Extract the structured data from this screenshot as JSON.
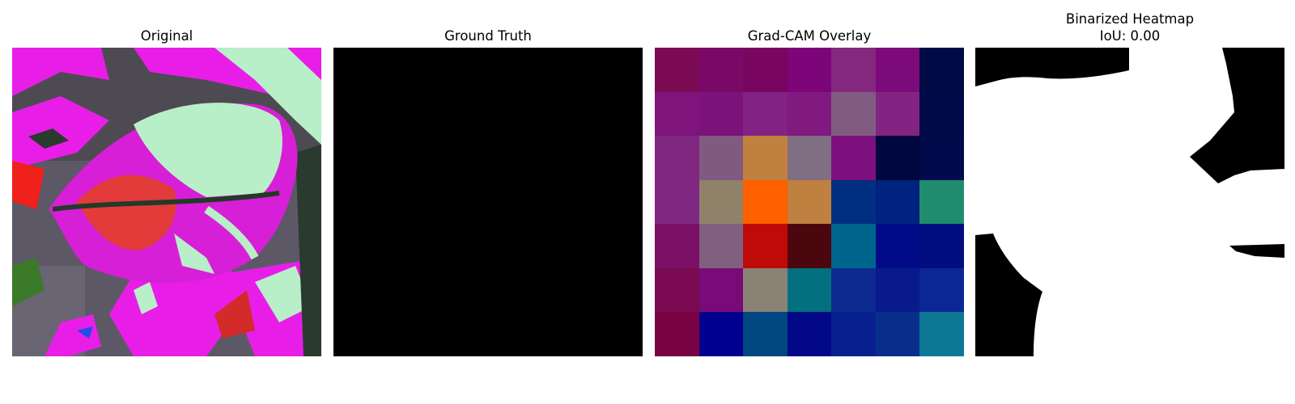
{
  "panels": {
    "original": {
      "title": "Original"
    },
    "ground_truth": {
      "title": "Ground Truth"
    },
    "gradcam": {
      "title": "Grad-CAM Overlay",
      "cells": [
        [
          "#7a0a52",
          "#7a0866",
          "#780560",
          "#7c0579",
          "#84287f",
          "#7c0a7b",
          "#000a45"
        ],
        [
          "#7e147c",
          "#7c137c",
          "#822284",
          "#801a80",
          "#805c80",
          "#832483",
          "#000a48"
        ],
        [
          "#802782",
          "#805a80",
          "#c08040",
          "#806f82",
          "#7e0f7f",
          "#00073f",
          "#000a4d"
        ],
        [
          "#802782",
          "#8f8269",
          "#ff6000",
          "#c08040",
          "#002e80",
          "#00237f",
          "#1e8c6d"
        ],
        [
          "#7c1066",
          "#81607f",
          "#bf0a0a",
          "#4b070d",
          "#00658c",
          "#010b88",
          "#010d80"
        ],
        [
          "#7a0a52",
          "#7a0a77",
          "#8a8375",
          "#02707f",
          "#0c2a8f",
          "#081a8c",
          "#0c2695"
        ],
        [
          "#780242",
          "#00008f",
          "#004680",
          "#020887",
          "#08208f",
          "#082e8c",
          "#0c7895"
        ]
      ]
    },
    "binarized": {
      "title": "Binarized Heatmap\nIoU: 0.00",
      "iou": "0.00"
    }
  },
  "colors": {
    "background": "#ffffff",
    "ground_truth_fill": "#000000",
    "binarized_on": "#ffffff",
    "binarized_off": "#000000"
  }
}
